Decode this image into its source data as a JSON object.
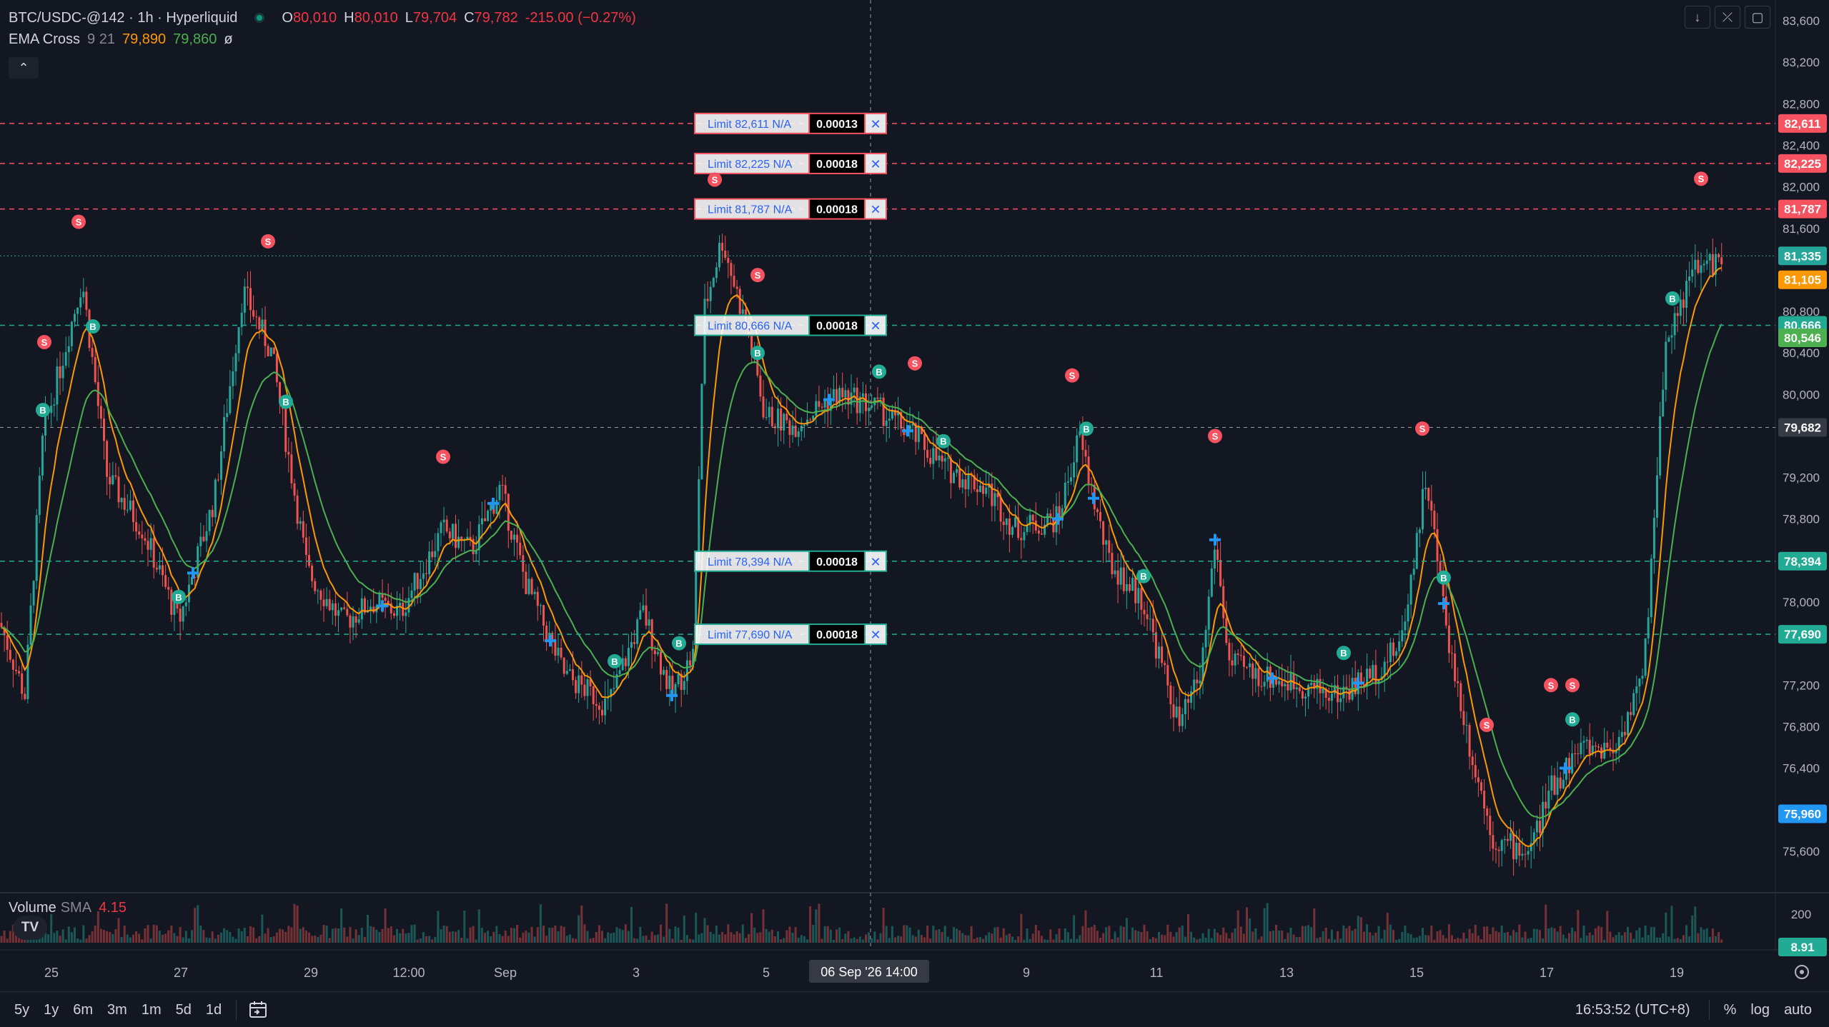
{
  "header": {
    "symbol": "BTC/USDC-@142 · 1h · Hyperliquid",
    "ohlc": [
      {
        "k": "O",
        "v": "80,010"
      },
      {
        "k": "H",
        "v": "80,010"
      },
      {
        "k": "L",
        "v": "79,704"
      },
      {
        "k": "C",
        "v": "79,782"
      },
      {
        "k": "",
        "v": "-215.00 (−0.27%)"
      }
    ]
  },
  "indicator": {
    "name": "EMA Cross",
    "args": "9 21",
    "fast_value": "79,890",
    "slow_value": "79,860",
    "suffix": "ø"
  },
  "volume": {
    "label": "Volume",
    "sub": "SMA",
    "value": "4.15"
  },
  "price_axis": {
    "ticks": [
      "83,600",
      "83,200",
      "82,800",
      "82,400",
      "82,000",
      "81,600",
      "80,800",
      "80,400",
      "80,000",
      "79,200",
      "78,800",
      "78,000",
      "77,200",
      "76,800",
      "76,400",
      "75,600"
    ],
    "volume_ticks": [
      "200"
    ]
  },
  "price_labels": [
    {
      "text": "82,611",
      "kind": "order-sell",
      "price": 82611
    },
    {
      "text": "82,225",
      "kind": "order-sell",
      "price": 82225
    },
    {
      "text": "81,787",
      "kind": "order-sell",
      "price": 81787
    },
    {
      "text": "81,335",
      "kind": "last-price",
      "price": 81335
    },
    {
      "text": "81,105",
      "kind": "ema-fast",
      "price": 81105
    },
    {
      "text": "80,666",
      "kind": "order-buy",
      "price": 80666
    },
    {
      "text": "80,546",
      "kind": "ema-slow",
      "price": 80546
    },
    {
      "text": "79,682",
      "kind": "crosshair",
      "price": 79682
    },
    {
      "text": "78,394",
      "kind": "order-buy",
      "price": 78394
    },
    {
      "text": "77,690",
      "kind": "order-buy",
      "price": 77690
    },
    {
      "text": "75,960",
      "kind": "position",
      "price": 75960
    }
  ],
  "volume_label": "8.91",
  "orders": [
    {
      "label": "Limit 82,611 N/A",
      "qty": "0.00013",
      "side": "sell",
      "price": 82611
    },
    {
      "label": "Limit 82,225 N/A",
      "qty": "0.00018",
      "side": "sell",
      "price": 82225
    },
    {
      "label": "Limit 81,787 N/A",
      "qty": "0.00018",
      "side": "sell",
      "price": 81787
    },
    {
      "label": "Limit 80,666 N/A",
      "qty": "0.00018",
      "side": "buy",
      "price": 80666
    },
    {
      "label": "Limit 78,394 N/A",
      "qty": "0.00018",
      "side": "buy",
      "price": 78394
    },
    {
      "label": "Limit 77,690 N/A",
      "qty": "0.00018",
      "side": "buy",
      "price": 77690
    }
  ],
  "time_axis": {
    "labels": [
      "25",
      "27",
      "29",
      "12:00",
      "Sep",
      "3",
      "5",
      "9",
      "11",
      "13",
      "15",
      "17",
      "19"
    ],
    "crosshair_label": "06 Sep '26   14:00"
  },
  "markers": {
    "buy": "B",
    "sell": "S"
  },
  "bottom_toolbar": {
    "ranges": [
      "5y",
      "1y",
      "6m",
      "3m",
      "1m",
      "5d",
      "1d"
    ],
    "clock": "16:53:52 (UTC+8)",
    "options": [
      "%",
      "log",
      "auto"
    ]
  },
  "top_right_icons": [
    "arrow-down-icon",
    "collapse-icon",
    "maximize-icon"
  ],
  "colors": {
    "background": "#131722",
    "up": "#26a69a",
    "down": "#ef5350",
    "ema_fast": "#ff9800",
    "ema_slow": "#4caf50",
    "sell_line": "#f7525f",
    "buy_line": "#22ab94",
    "position": "#2962ff"
  }
}
